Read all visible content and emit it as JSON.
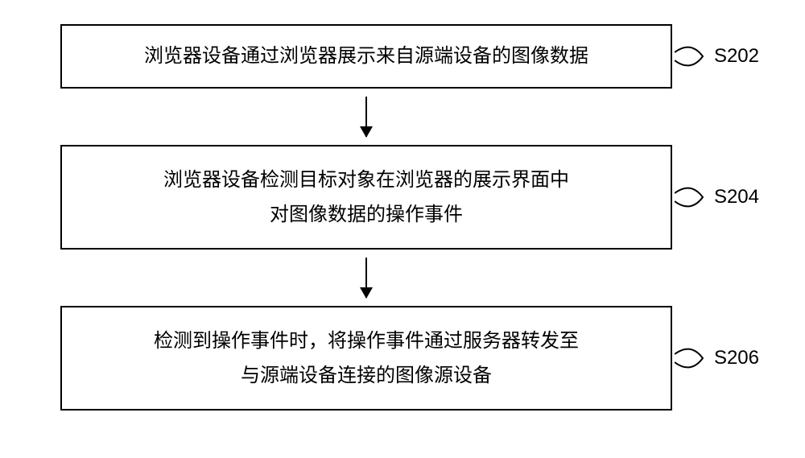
{
  "flowchart": {
    "type": "flowchart",
    "background_color": "#ffffff",
    "box_border_color": "#000000",
    "box_border_width": 2,
    "text_color": "#000000",
    "font_size": 24,
    "arrow_color": "#000000",
    "steps": [
      {
        "id": "S202",
        "text": "浏览器设备通过浏览器展示来自源端设备的图像数据",
        "height_class": "box-small"
      },
      {
        "id": "S204",
        "text": "浏览器设备检测目标对象在浏览器的展示界面中\n对图像数据的操作事件",
        "height_class": "box-large"
      },
      {
        "id": "S206",
        "text": "检测到操作事件时，将操作事件通过服务器转发至\n与源端设备连接的图像源设备",
        "height_class": "box-large"
      }
    ]
  }
}
